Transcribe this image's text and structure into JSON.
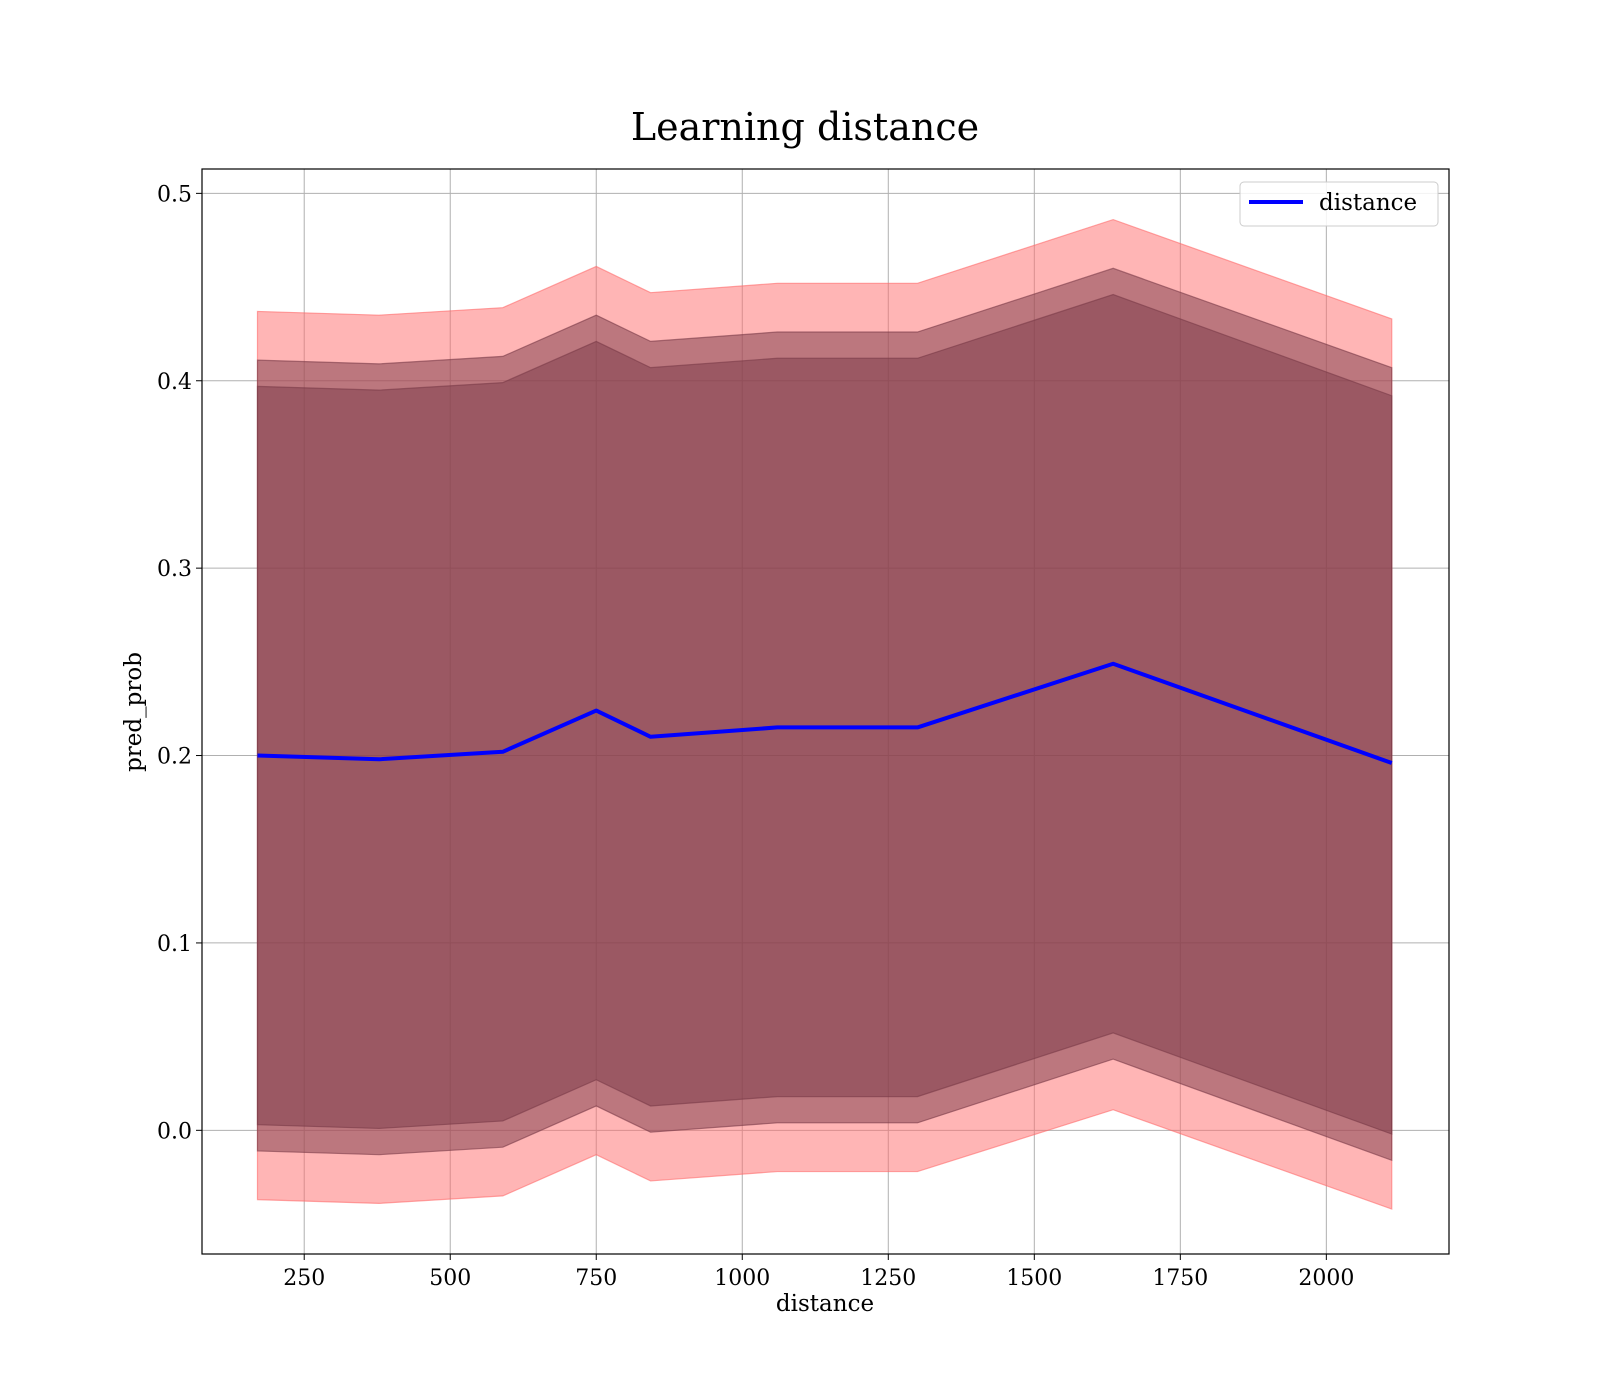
{
  "chart_data": {
    "type": "line",
    "title": "Learning distance",
    "xlabel": "distance",
    "ylabel": "pred_prob",
    "xlim": [
      75,
      2210
    ],
    "ylim": [
      -0.066,
      0.513
    ],
    "xticks": [
      250,
      500,
      750,
      1000,
      1250,
      1500,
      1750,
      2000
    ],
    "xtick_labels": [
      "250",
      "500",
      "750",
      "1000",
      "1250",
      "1500",
      "1750",
      "2000"
    ],
    "yticks": [
      0.0,
      0.1,
      0.2,
      0.3,
      0.4,
      0.5
    ],
    "ytick_labels": [
      "0.0",
      "0.1",
      "0.2",
      "0.3",
      "0.4",
      "0.5"
    ],
    "grid": true,
    "legend_position": "top-right",
    "x": [
      170,
      378,
      590,
      750,
      843,
      1060,
      1300,
      1635,
      2112
    ],
    "series": [
      {
        "name": "distance",
        "color": "#0000ff",
        "values": [
          0.2,
          0.198,
          0.202,
          0.224,
          0.21,
          0.215,
          0.215,
          0.249,
          0.196
        ]
      }
    ],
    "bands": [
      {
        "color": "#ff6b6b",
        "lower": [
          -0.037,
          -0.039,
          -0.035,
          -0.013,
          -0.027,
          -0.022,
          -0.022,
          0.011,
          -0.042
        ],
        "upper": [
          0.437,
          0.435,
          0.439,
          0.461,
          0.447,
          0.452,
          0.452,
          0.486,
          0.433
        ]
      },
      {
        "color": "#7a3a48",
        "lower": [
          -0.011,
          -0.013,
          -0.009,
          0.013,
          -0.001,
          0.004,
          0.004,
          0.038,
          -0.016
        ],
        "upper": [
          0.411,
          0.409,
          0.413,
          0.435,
          0.421,
          0.426,
          0.426,
          0.46,
          0.407
        ]
      },
      {
        "color": "#7a3a48",
        "lower": [
          0.003,
          0.001,
          0.005,
          0.027,
          0.013,
          0.018,
          0.018,
          0.052,
          -0.002
        ],
        "upper": [
          0.397,
          0.395,
          0.399,
          0.421,
          0.407,
          0.412,
          0.412,
          0.446,
          0.392
        ]
      }
    ]
  }
}
